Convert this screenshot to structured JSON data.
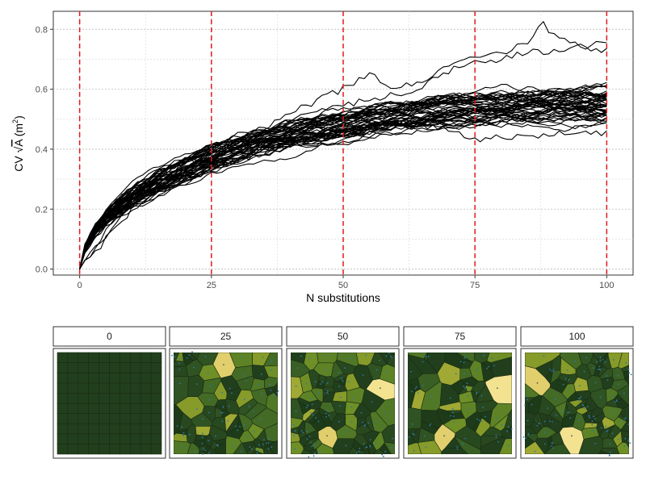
{
  "chart_data": [
    {
      "type": "line",
      "xlabel": "N substitutions",
      "ylabel_prefix": "CV ",
      "ylabel_radical": "√",
      "ylabel_var": "A",
      "ylabel_unit_open": " (m",
      "ylabel_unit_sup": "2",
      "ylabel_unit_close": ")",
      "xlim": [
        -5,
        105
      ],
      "ylim": [
        -0.02,
        0.86
      ],
      "x_ticks": [
        0,
        25,
        50,
        75,
        100
      ],
      "x_tick_labels": [
        "0",
        "25",
        "50",
        "75",
        "100"
      ],
      "y_ticks": [
        0.0,
        0.2,
        0.4,
        0.6,
        0.8
      ],
      "y_tick_labels": [
        "0.0",
        "0.2",
        "0.4",
        "0.6",
        "0.8"
      ],
      "grid": "dotted",
      "vlines": [
        0,
        25,
        50,
        75,
        100
      ],
      "vline_color": "#e41a1c",
      "series_color": "#000000",
      "series_count": 50,
      "mean_curve": {
        "x": [
          0,
          1,
          2,
          3,
          5,
          10,
          15,
          20,
          25,
          30,
          35,
          40,
          45,
          50,
          55,
          60,
          65,
          70,
          75,
          80,
          85,
          90,
          95,
          100
        ],
        "y": [
          0.0,
          0.07,
          0.1,
          0.13,
          0.17,
          0.24,
          0.29,
          0.33,
          0.37,
          0.4,
          0.43,
          0.45,
          0.47,
          0.48,
          0.5,
          0.51,
          0.52,
          0.53,
          0.535,
          0.54,
          0.545,
          0.55,
          0.55,
          0.55
        ]
      },
      "spread_curve": {
        "x": [
          0,
          5,
          25,
          50,
          75,
          100
        ],
        "y": [
          0.0,
          0.02,
          0.04,
          0.045,
          0.05,
          0.05
        ]
      },
      "outliers": [
        {
          "x": [
            0,
            10,
            20,
            25,
            30,
            40,
            45,
            50,
            55,
            60,
            65,
            70,
            75,
            80,
            85,
            88,
            90,
            95,
            100
          ],
          "y": [
            0,
            0.26,
            0.35,
            0.38,
            0.43,
            0.52,
            0.56,
            0.6,
            0.65,
            0.6,
            0.63,
            0.68,
            0.7,
            0.72,
            0.76,
            0.82,
            0.78,
            0.74,
            0.76
          ]
        },
        {
          "x": [
            0,
            10,
            25,
            40,
            50,
            60,
            65,
            70,
            75,
            80,
            85,
            90,
            95,
            100
          ],
          "y": [
            0,
            0.23,
            0.38,
            0.48,
            0.55,
            0.58,
            0.61,
            0.66,
            0.69,
            0.7,
            0.72,
            0.73,
            0.74,
            0.73
          ]
        },
        {
          "x": [
            0,
            10,
            25,
            50,
            60,
            70,
            75,
            80,
            90,
            100
          ],
          "y": [
            0,
            0.2,
            0.34,
            0.46,
            0.48,
            0.47,
            0.43,
            0.44,
            0.45,
            0.45
          ]
        }
      ]
    },
    {
      "type": "heatmap",
      "panels": [
        {
          "label": "0",
          "cell_count": 100,
          "bright_cells": []
        },
        {
          "label": "25",
          "cell_count": 85,
          "bright_cells": [
            "top-center"
          ]
        },
        {
          "label": "50",
          "cell_count": 75,
          "bright_cells": [
            "bottom-left",
            "right"
          ]
        },
        {
          "label": "75",
          "cell_count": 70,
          "bright_cells": [
            "right",
            "bottom-left"
          ]
        },
        {
          "label": "100",
          "cell_count": 70,
          "bright_cells": [
            "left",
            "bottom-center"
          ]
        }
      ],
      "palette": [
        "#1d3b19",
        "#213f1c",
        "#28481f",
        "#2f5322",
        "#395f24",
        "#446b26",
        "#517826",
        "#5e8326",
        "#6f8f27",
        "#879b2a",
        "#a0a933",
        "#c2b84a",
        "#e0cf6c",
        "#f3e391"
      ],
      "seed_color": "#2e78a4",
      "border_color": "#1b2a14",
      "strip_fill": "#ffffff",
      "strip_border": "#333333"
    }
  ]
}
